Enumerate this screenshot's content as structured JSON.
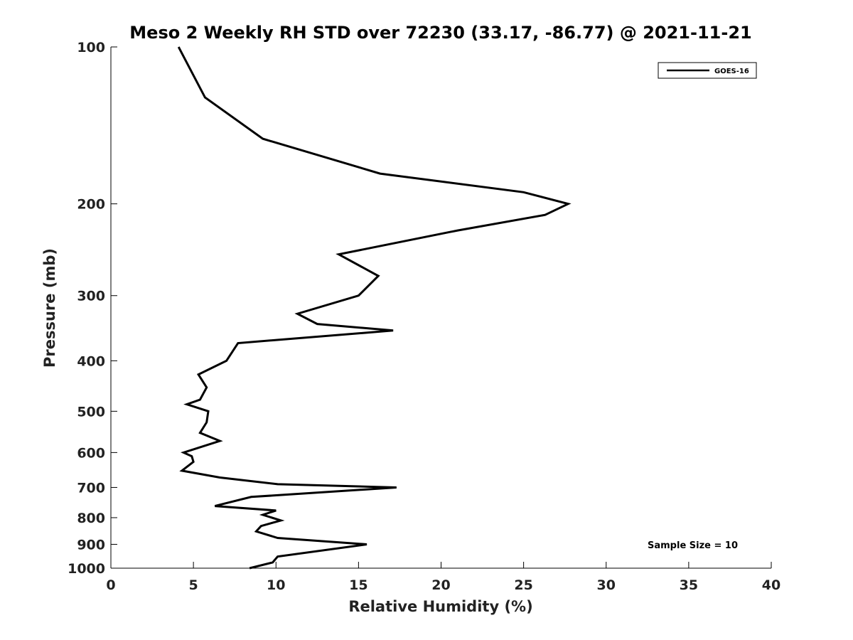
{
  "chart_data": {
    "type": "line",
    "title": "Meso 2 Weekly RH STD over 72230 (33.17, -86.77) @ 2021-11-21",
    "xlabel": "Relative Humidity (%)",
    "ylabel": "Pressure (mb)",
    "xlim": [
      0,
      40
    ],
    "ylim": [
      100,
      1000
    ],
    "y_scale": "log",
    "y_reversed": true,
    "grid": false,
    "x_ticks": [
      0,
      5,
      10,
      15,
      20,
      25,
      30,
      35,
      40
    ],
    "y_ticks": [
      100,
      200,
      300,
      400,
      500,
      600,
      700,
      800,
      900,
      1000
    ],
    "legend_position": "top-right",
    "series": [
      {
        "name": "GOES-16",
        "color": "#000000",
        "points": [
          [
            4.1,
            100
          ],
          [
            5.7,
            125
          ],
          [
            9.2,
            150
          ],
          [
            16.3,
            175
          ],
          [
            25.0,
            190
          ],
          [
            27.7,
            200
          ],
          [
            26.3,
            210
          ],
          [
            21.0,
            225
          ],
          [
            13.8,
            250
          ],
          [
            16.2,
            275
          ],
          [
            15.0,
            300
          ],
          [
            11.3,
            325
          ],
          [
            12.5,
            340
          ],
          [
            17.1,
            350
          ],
          [
            7.7,
            370
          ],
          [
            7.0,
            400
          ],
          [
            5.3,
            425
          ],
          [
            5.8,
            450
          ],
          [
            5.4,
            475
          ],
          [
            4.6,
            485
          ],
          [
            5.9,
            500
          ],
          [
            5.8,
            525
          ],
          [
            5.4,
            550
          ],
          [
            6.6,
            570
          ],
          [
            4.4,
            600
          ],
          [
            4.9,
            610
          ],
          [
            5.0,
            625
          ],
          [
            4.3,
            650
          ],
          [
            6.6,
            670
          ],
          [
            10.1,
            690
          ],
          [
            17.3,
            700
          ],
          [
            8.5,
            730
          ],
          [
            6.3,
            760
          ],
          [
            10.0,
            775
          ],
          [
            9.2,
            790
          ],
          [
            10.3,
            810
          ],
          [
            9.1,
            830
          ],
          [
            8.8,
            850
          ],
          [
            10.1,
            875
          ],
          [
            15.5,
            900
          ],
          [
            10.1,
            950
          ],
          [
            9.8,
            975
          ],
          [
            8.4,
            1000
          ]
        ]
      }
    ],
    "annotation": "Sample Size = 10"
  }
}
